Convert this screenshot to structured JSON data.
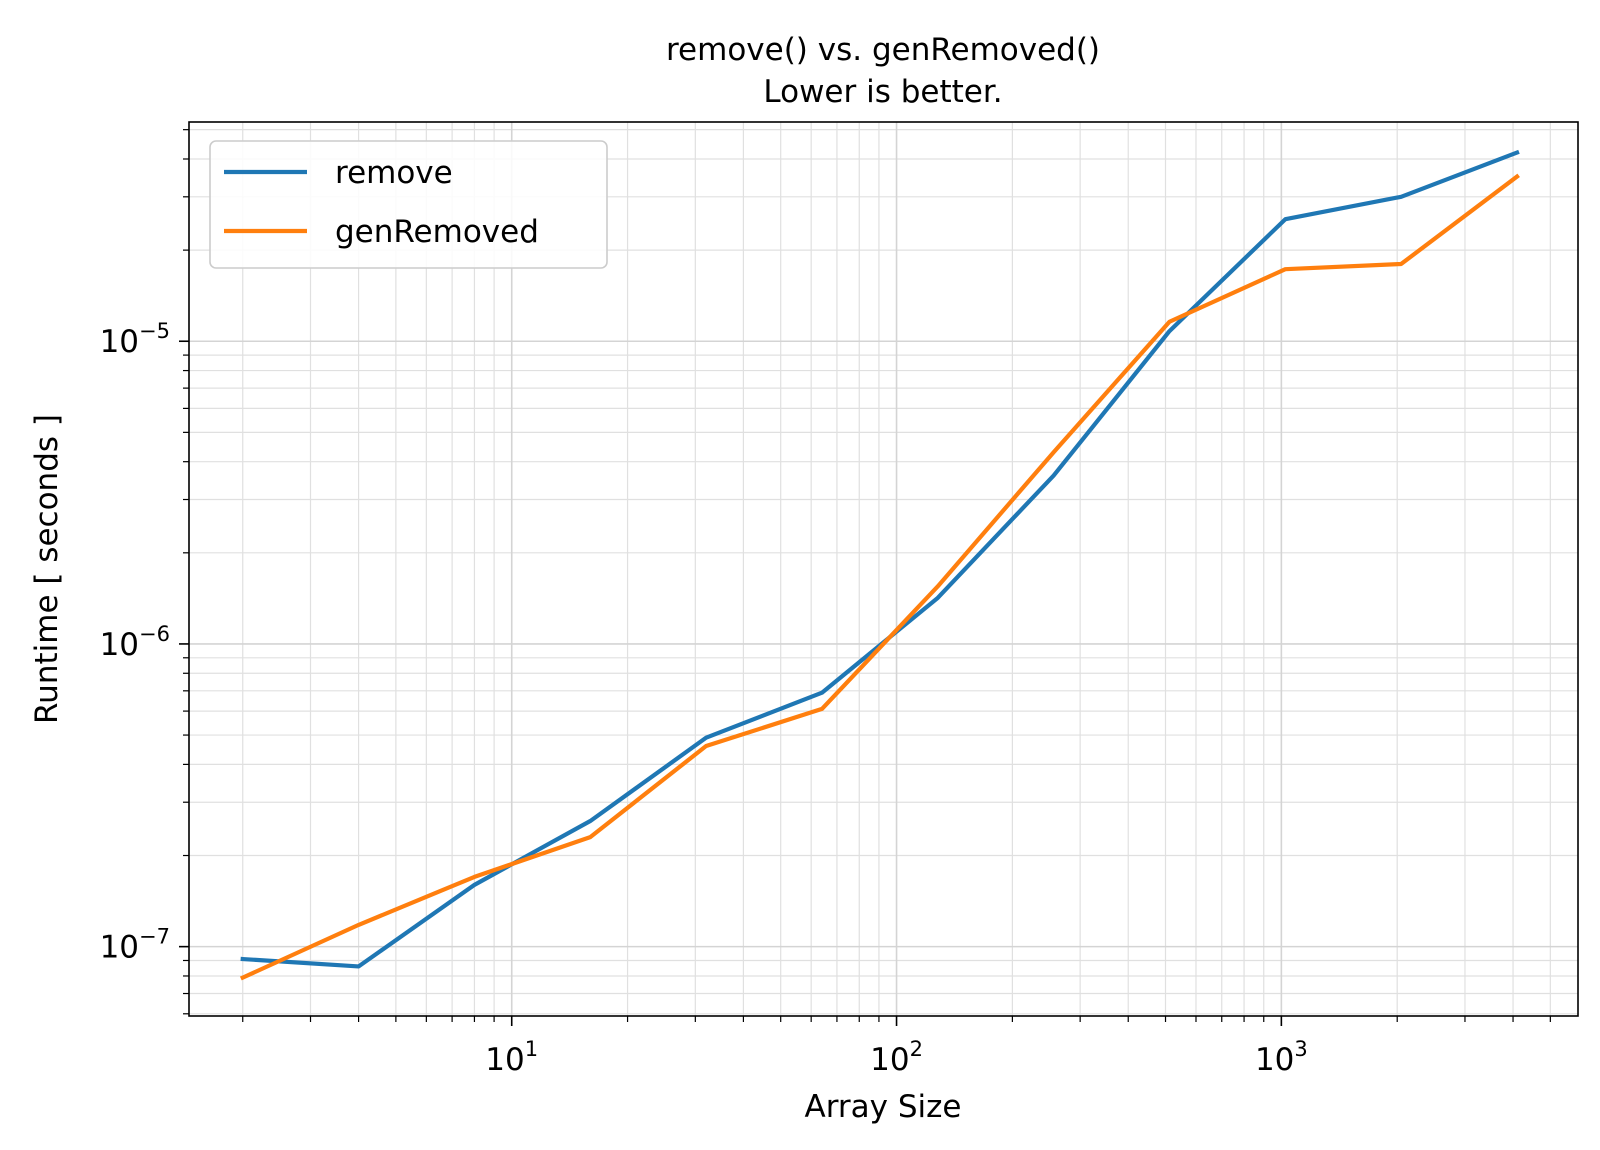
{
  "chart_data": {
    "type": "line",
    "title": "remove() vs. genRemoved()",
    "subtitle": "Lower is better.",
    "xlabel": "Array Size",
    "ylabel": "Runtime [ seconds ]",
    "xscale": "log",
    "yscale": "log",
    "xlim": [
      1.45,
      5900
    ],
    "ylim": [
      5.9e-08,
      5.3e-05
    ],
    "grid": true,
    "grid_minor": true,
    "legend_position": "top-left",
    "x": [
      2,
      4,
      8,
      16,
      32,
      64,
      128,
      256,
      512,
      1024,
      2048,
      4096
    ],
    "series": [
      {
        "name": "remove",
        "color": "#1f77b4",
        "values": [
          9.1e-08,
          8.6e-08,
          1.6e-07,
          2.6e-07,
          4.9e-07,
          6.9e-07,
          1.42e-06,
          3.6e-06,
          1.08e-05,
          2.53e-05,
          3e-05,
          4.2e-05
        ]
      },
      {
        "name": "genRemoved",
        "color": "#ff7f0e",
        "values": [
          7.9e-08,
          1.18e-07,
          1.7e-07,
          2.3e-07,
          4.6e-07,
          6.1e-07,
          1.55e-06,
          4.3e-06,
          1.16e-05,
          1.73e-05,
          1.8e-05,
          3.5e-05
        ]
      }
    ],
    "x_ticks": [
      {
        "value": 10,
        "base": "10",
        "exp": "1"
      },
      {
        "value": 100,
        "base": "10",
        "exp": "2"
      },
      {
        "value": 1000,
        "base": "10",
        "exp": "3"
      }
    ],
    "y_ticks": [
      {
        "value": 1e-07,
        "base": "10",
        "exp": "−7"
      },
      {
        "value": 1e-06,
        "base": "10",
        "exp": "−6"
      },
      {
        "value": 1e-05,
        "base": "10",
        "exp": "−5"
      }
    ]
  }
}
